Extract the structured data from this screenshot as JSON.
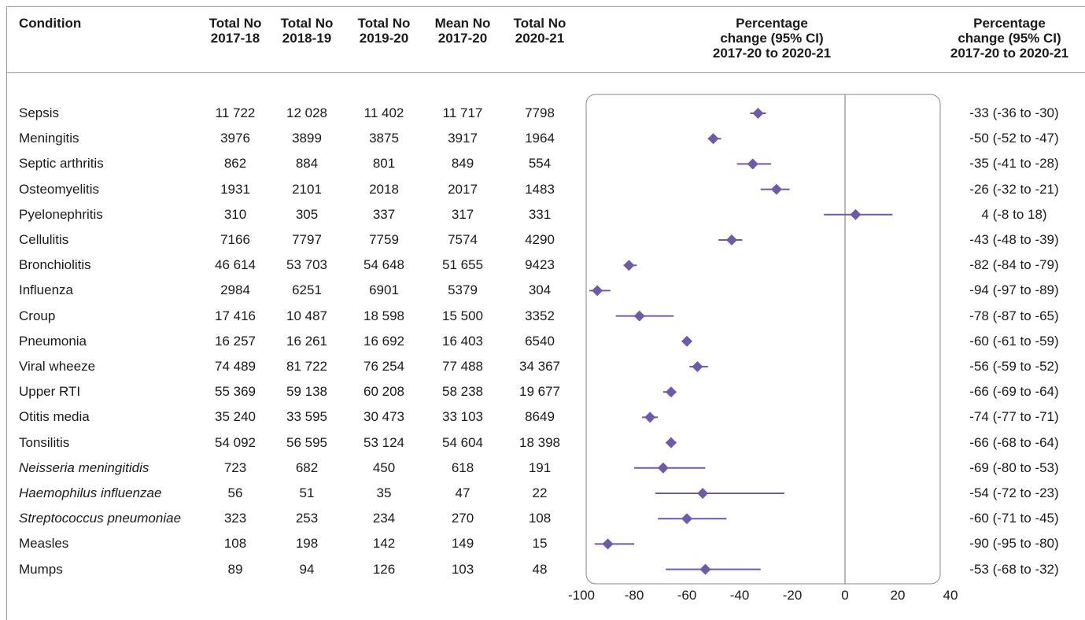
{
  "table": {
    "headers": {
      "condition": "Condition",
      "col0": [
        "Total No",
        "2017-18"
      ],
      "col1": [
        "Total No",
        "2018-19"
      ],
      "col2": [
        "Total No",
        "2019-20"
      ],
      "col3": [
        "Mean No",
        "2017-20"
      ],
      "col4": [
        "Total No",
        "2020-21"
      ],
      "plot": [
        "Percentage",
        "change (95% CI)",
        "2017-20 to 2020-21"
      ],
      "ci": [
        "Percentage",
        "change (95% CI)",
        "2017-20 to 2020-21"
      ]
    },
    "rows": [
      {
        "condition": "Sepsis",
        "italic": false,
        "values": [
          "11 722",
          "12 028",
          "11 402",
          "11 717",
          "7798"
        ],
        "ci_text": "-33 (-36 to -30)"
      },
      {
        "condition": "Meningitis",
        "italic": false,
        "values": [
          "3976",
          "3899",
          "3875",
          "3917",
          "1964"
        ],
        "ci_text": "-50 (-52 to -47)"
      },
      {
        "condition": "Septic arthritis",
        "italic": false,
        "values": [
          "862",
          "884",
          "801",
          "849",
          "554"
        ],
        "ci_text": "-35 (-41 to -28)"
      },
      {
        "condition": "Osteomyelitis",
        "italic": false,
        "values": [
          "1931",
          "2101",
          "2018",
          "2017",
          "1483"
        ],
        "ci_text": "-26 (-32 to -21)"
      },
      {
        "condition": "Pyelonephritis",
        "italic": false,
        "values": [
          "310",
          "305",
          "337",
          "317",
          "331"
        ],
        "ci_text": "4 (-8 to 18)"
      },
      {
        "condition": "Cellulitis",
        "italic": false,
        "values": [
          "7166",
          "7797",
          "7759",
          "7574",
          "4290"
        ],
        "ci_text": "-43 (-48 to -39)"
      },
      {
        "condition": "Bronchiolitis",
        "italic": false,
        "values": [
          "46 614",
          "53 703",
          "54 648",
          "51 655",
          "9423"
        ],
        "ci_text": "-82 (-84 to -79)"
      },
      {
        "condition": "Influenza",
        "italic": false,
        "values": [
          "2984",
          "6251",
          "6901",
          "5379",
          "304"
        ],
        "ci_text": "-94 (-97 to -89)"
      },
      {
        "condition": "Croup",
        "italic": false,
        "values": [
          "17 416",
          "10 487",
          "18 598",
          "15 500",
          "3352"
        ],
        "ci_text": "-78 (-87 to -65)"
      },
      {
        "condition": "Pneumonia",
        "italic": false,
        "values": [
          "16 257",
          "16 261",
          "16 692",
          "16 403",
          "6540"
        ],
        "ci_text": "-60 (-61 to -59)"
      },
      {
        "condition": "Viral wheeze",
        "italic": false,
        "values": [
          "74 489",
          "81 722",
          "76 254",
          "77 488",
          "34 367"
        ],
        "ci_text": "-56 (-59 to -52)"
      },
      {
        "condition": "Upper RTI",
        "italic": false,
        "values": [
          "55 369",
          "59 138",
          "60 208",
          "58 238",
          "19 677"
        ],
        "ci_text": "-66 (-69 to -64)"
      },
      {
        "condition": "Otitis media",
        "italic": false,
        "values": [
          "35 240",
          "33 595",
          "30 473",
          "33 103",
          "8649"
        ],
        "ci_text": "-74 (-77 to -71)"
      },
      {
        "condition": "Tonsilitis",
        "italic": false,
        "values": [
          "54 092",
          "56 595",
          "53 124",
          "54 604",
          "18 398"
        ],
        "ci_text": "-66 (-68 to -64)"
      },
      {
        "condition": "Neisseria meningitidis",
        "italic": true,
        "values": [
          "723",
          "682",
          "450",
          "618",
          "191"
        ],
        "ci_text": "-69 (-80 to -53)"
      },
      {
        "condition": "Haemophilus influenzae",
        "italic": true,
        "values": [
          "56",
          "51",
          "35",
          "47",
          "22"
        ],
        "ci_text": "-54 (-72 to -23)"
      },
      {
        "condition": "Streptococcus pneumoniae",
        "italic": true,
        "values": [
          "323",
          "253",
          "234",
          "270",
          "108"
        ],
        "ci_text": "-60 (-71 to -45)"
      },
      {
        "condition": "Measles",
        "italic": false,
        "values": [
          "108",
          "198",
          "142",
          "149",
          "15"
        ],
        "ci_text": "-90 (-95 to -80)"
      },
      {
        "condition": "Mumps",
        "italic": false,
        "values": [
          "89",
          "94",
          "126",
          "103",
          "48"
        ],
        "ci_text": "-53 (-68 to -32)"
      }
    ]
  },
  "colors": {
    "marker": "#6f5aa8",
    "axis": "#8a8a8a",
    "rule": "#9a9a9a",
    "text": "#1a1a1a"
  },
  "chart_data": {
    "type": "forest",
    "categories": [
      "Sepsis",
      "Meningitis",
      "Septic arthritis",
      "Osteomyelitis",
      "Pyelonephritis",
      "Cellulitis",
      "Bronchiolitis",
      "Influenza",
      "Croup",
      "Pneumonia",
      "Viral wheeze",
      "Upper RTI",
      "Otitis media",
      "Tonsilitis",
      "Neisseria meningitidis",
      "Haemophilus influenzae",
      "Streptococcus pneumoniae",
      "Measles",
      "Mumps"
    ],
    "estimates": [
      -33,
      -50,
      -35,
      -26,
      4,
      -43,
      -82,
      -94,
      -78,
      -60,
      -56,
      -66,
      -74,
      -66,
      -69,
      -54,
      -60,
      -90,
      -53
    ],
    "ci_low": [
      -36,
      -52,
      -41,
      -32,
      -8,
      -48,
      -84,
      -97,
      -87,
      -61,
      -59,
      -69,
      -77,
      -68,
      -80,
      -72,
      -71,
      -95,
      -68
    ],
    "ci_high": [
      -30,
      -47,
      -28,
      -21,
      18,
      -39,
      -79,
      -89,
      -65,
      -59,
      -52,
      -64,
      -71,
      -64,
      -53,
      -23,
      -45,
      -80,
      -32
    ],
    "xlim": [
      -100,
      40
    ],
    "xticks": [
      -100,
      -80,
      -60,
      -40,
      -20,
      0,
      20,
      40
    ],
    "reference_line": 0,
    "grid": false
  }
}
